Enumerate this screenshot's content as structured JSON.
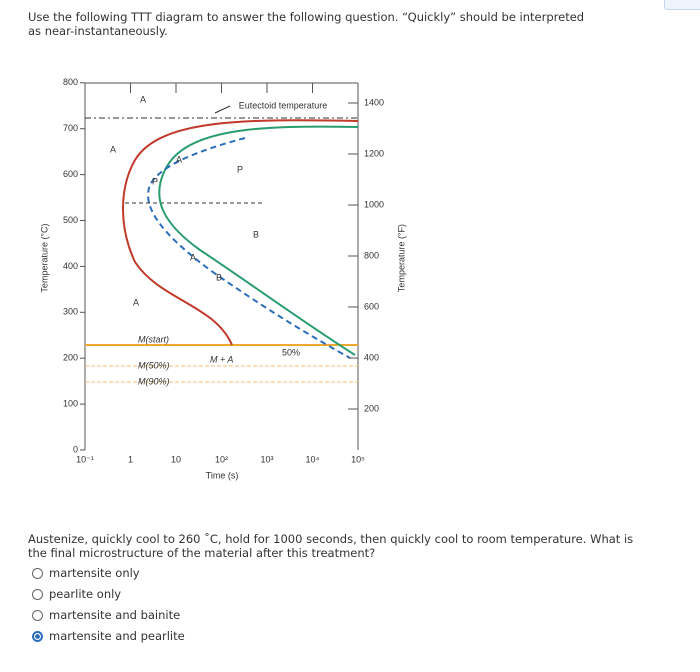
{
  "question": {
    "intro": "Use the following TTT diagram to answer the following question. “Quickly” should be interpreted as near-instantaneously.",
    "text": "Austenize, quickly cool to 260 ˚C, hold for 1000 seconds, then quickly cool to room temperature. What is the final microstructure of the material after this treatment?",
    "options": [
      "martensite only",
      "pearlite only",
      "martensite and bainite",
      "martensite and pearlite"
    ],
    "selected": 3
  },
  "diagram": {
    "y_label": "Temperature (°C)",
    "y2_label": "Temperature (°F)",
    "x_label": "Time (s)",
    "yticks": [
      0,
      100,
      200,
      300,
      400,
      500,
      600,
      700,
      800
    ],
    "y2ticks": [
      200,
      400,
      600,
      800,
      1000,
      1200,
      1400
    ],
    "xticks": [
      "10⁻¹",
      "1",
      "10",
      "10²",
      "10³",
      "10⁴",
      "10⁵"
    ],
    "labels": [
      "A",
      "A",
      "A",
      "P",
      "B",
      "M(start)",
      "M + A",
      "M(50%)",
      "M(90%)",
      "50%",
      "Eutectoid temperature",
      "A",
      "P",
      "A",
      "B"
    ]
  }
}
